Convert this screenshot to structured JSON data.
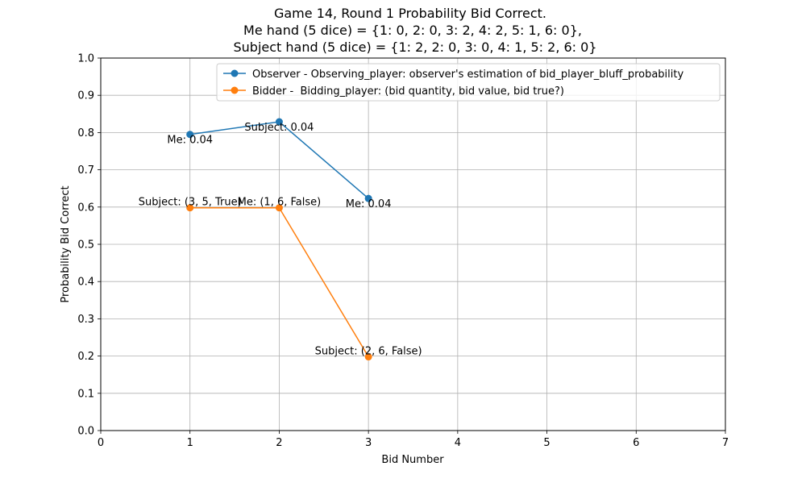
{
  "chart_data": {
    "type": "line",
    "title_lines": [
      "Game 14, Round 1 Probability Bid Correct.",
      "Me hand (5 dice) = {1: 0, 2: 0, 3: 2, 4: 2, 5: 1, 6: 0},",
      "Subject hand (5 dice) = {1: 2, 2: 0, 3: 0, 4: 1, 5: 2, 6: 0}"
    ],
    "xlabel": "Bid Number",
    "ylabel": "Probability Bid Correct",
    "xlim": [
      0,
      7
    ],
    "ylim": [
      0,
      1
    ],
    "x_ticks": [
      0,
      1,
      2,
      3,
      4,
      5,
      6,
      7
    ],
    "x_tick_labels": [
      "0",
      "1",
      "2",
      "3",
      "4",
      "5",
      "6",
      "7"
    ],
    "y_ticks": [
      0,
      0.1,
      0.2,
      0.3,
      0.4,
      0.5,
      0.6,
      0.7,
      0.8,
      0.9,
      1.0
    ],
    "y_tick_labels": [
      "0.0",
      "0.1",
      "0.2",
      "0.3",
      "0.4",
      "0.5",
      "0.6",
      "0.7",
      "0.8",
      "0.9",
      "1.0"
    ],
    "grid": true,
    "legend_position": "top-right",
    "series": [
      {
        "name": "Observer - Observing_player: observer's estimation of bid_player_bluff_probability",
        "color": "#1f77b4",
        "marker": "circle",
        "x": [
          1,
          2,
          3
        ],
        "y": [
          0.795,
          0.829,
          0.623
        ],
        "annotations": [
          "Me: 0.04",
          "Subject: 0.04",
          "Me: 0.04"
        ],
        "annotation_placement": "below"
      },
      {
        "name": "Bidder -  Bidding_player: (bid quantity, bid value, bid true?)",
        "color": "#ff7f0e",
        "marker": "circle",
        "x": [
          1,
          2,
          3
        ],
        "y": [
          0.598,
          0.598,
          0.198
        ],
        "annotations": [
          "Subject: (3, 5, True)",
          "Me: (1, 6, False)",
          "Subject: (2, 6, False)"
        ],
        "annotation_placement": "above"
      }
    ]
  }
}
